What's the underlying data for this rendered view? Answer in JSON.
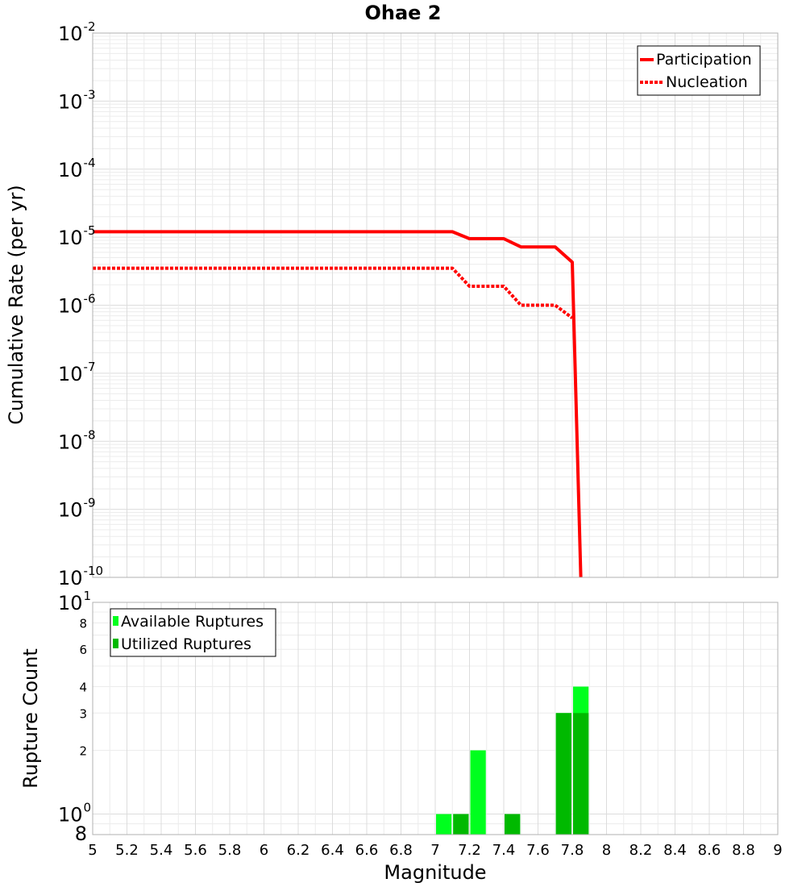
{
  "chart_data": [
    {
      "type": "line",
      "title": "Ohae 2",
      "xlabel": "Magnitude",
      "ylabel": "Cumulative Rate (per yr)",
      "yscale": "log",
      "xlim": [
        5,
        9
      ],
      "ylim": [
        1e-10,
        0.01
      ],
      "grid": true,
      "legend_position": "top-right",
      "y_tick_exponents": [
        "-2",
        "-3",
        "-4",
        "-5",
        "-6",
        "-7",
        "-8",
        "-9",
        "-10"
      ],
      "y_tick_base": "10",
      "series": [
        {
          "name": "Participation",
          "style": "solid",
          "color": "#ff0000",
          "x": [
            5.0,
            7.1,
            7.2,
            7.4,
            7.5,
            7.7,
            7.8,
            7.85
          ],
          "y": [
            1.2e-05,
            1.2e-05,
            9.5e-06,
            9.5e-06,
            7.2e-06,
            7.2e-06,
            4.3e-06,
            1e-10
          ]
        },
        {
          "name": "Nucleation",
          "style": "dotted",
          "color": "#ff0000",
          "x": [
            5.0,
            7.1,
            7.2,
            7.4,
            7.5,
            7.7,
            7.8
          ],
          "y": [
            3.5e-06,
            3.5e-06,
            1.9e-06,
            1.9e-06,
            1e-06,
            1e-06,
            6.5e-07
          ]
        }
      ]
    },
    {
      "type": "bar",
      "xlabel": "Magnitude",
      "ylabel": "Rupture Count",
      "yscale": "log",
      "xlim": [
        5,
        9
      ],
      "ylim": [
        0.8,
        10
      ],
      "grid": true,
      "legend_position": "top-left",
      "bin_width": 0.1,
      "x_ticks": [
        "5",
        "5.2",
        "5.4",
        "5.6",
        "5.8",
        "6",
        "6.2",
        "6.4",
        "6.6",
        "6.8",
        "7",
        "7.2",
        "7.4",
        "7.6",
        "7.8",
        "8",
        "8.2",
        "8.4",
        "8.6",
        "8.8",
        "9"
      ],
      "y_ticks_minor": [
        "8",
        "6",
        "4",
        "3",
        "2"
      ],
      "y_tick_bottom": "8",
      "y_tick_exponents": [
        "1",
        "0"
      ],
      "y_tick_base": "10",
      "series": [
        {
          "name": "Available Ruptures",
          "color": "#00ff1e",
          "x": [
            7.05,
            7.15,
            7.25,
            7.45,
            7.75,
            7.85
          ],
          "values": [
            1,
            1,
            2,
            1,
            3,
            4
          ]
        },
        {
          "name": "Utilized Ruptures",
          "color": "#00b900",
          "x": [
            7.15,
            7.45,
            7.75,
            7.85
          ],
          "values": [
            1,
            1,
            3,
            3
          ]
        }
      ]
    }
  ]
}
